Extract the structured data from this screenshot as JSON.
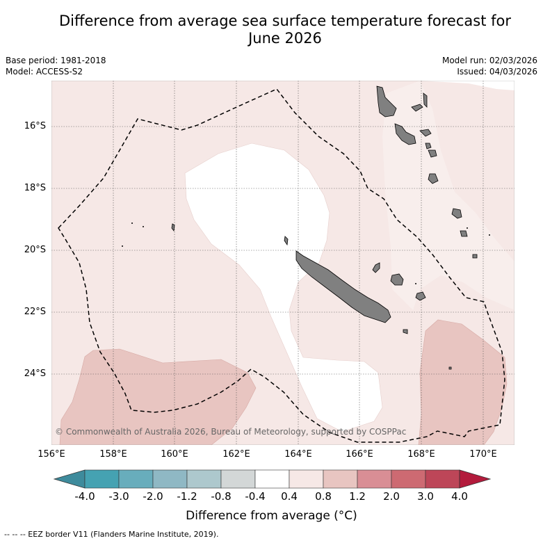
{
  "title": {
    "line1": "Difference from average sea surface temperature forecast for",
    "line2": "June 2026"
  },
  "meta": {
    "base_period": "Base period: 1981-2018",
    "model": "Model: ACCESS-S2",
    "model_run": "Model run: 02/03/2026",
    "issued": "Issued: 04/03/2026"
  },
  "map": {
    "lat_labels": [
      "16°S",
      "18°S",
      "20°S",
      "22°S",
      "24°S"
    ],
    "lon_labels": [
      "156°E",
      "158°E",
      "160°E",
      "162°E",
      "164°E",
      "166°E",
      "168°E",
      "170°E"
    ],
    "copyright": "© Commonwealth of Australia 2026, Bureau of Meteorology, supported by COSPPac",
    "colors": {
      "land": "#808080",
      "pale_red": "#f6e8e6",
      "light_red": "#e8c5c1",
      "white": "#ffffff"
    }
  },
  "colorbar": {
    "ticks": [
      "-4.0",
      "-3.0",
      "-2.0",
      "-1.2",
      "-0.8",
      "-0.4",
      "0.4",
      "0.8",
      "1.2",
      "2.0",
      "3.0",
      "4.0"
    ],
    "colors": [
      "#3e8b9c",
      "#45a2b2",
      "#68adbc",
      "#8fb8c4",
      "#adc8cd",
      "#d3d7d7",
      "#ffffff",
      "#f6e8e6",
      "#e8c5c1",
      "#d98e95",
      "#cd6a72",
      "#bd4658",
      "#b31b3c"
    ],
    "label": "Difference from average (°C)"
  },
  "legend": {
    "eez_text": "-- -- -- EEZ border V11 (Flanders Marine Institute, 2019)."
  }
}
